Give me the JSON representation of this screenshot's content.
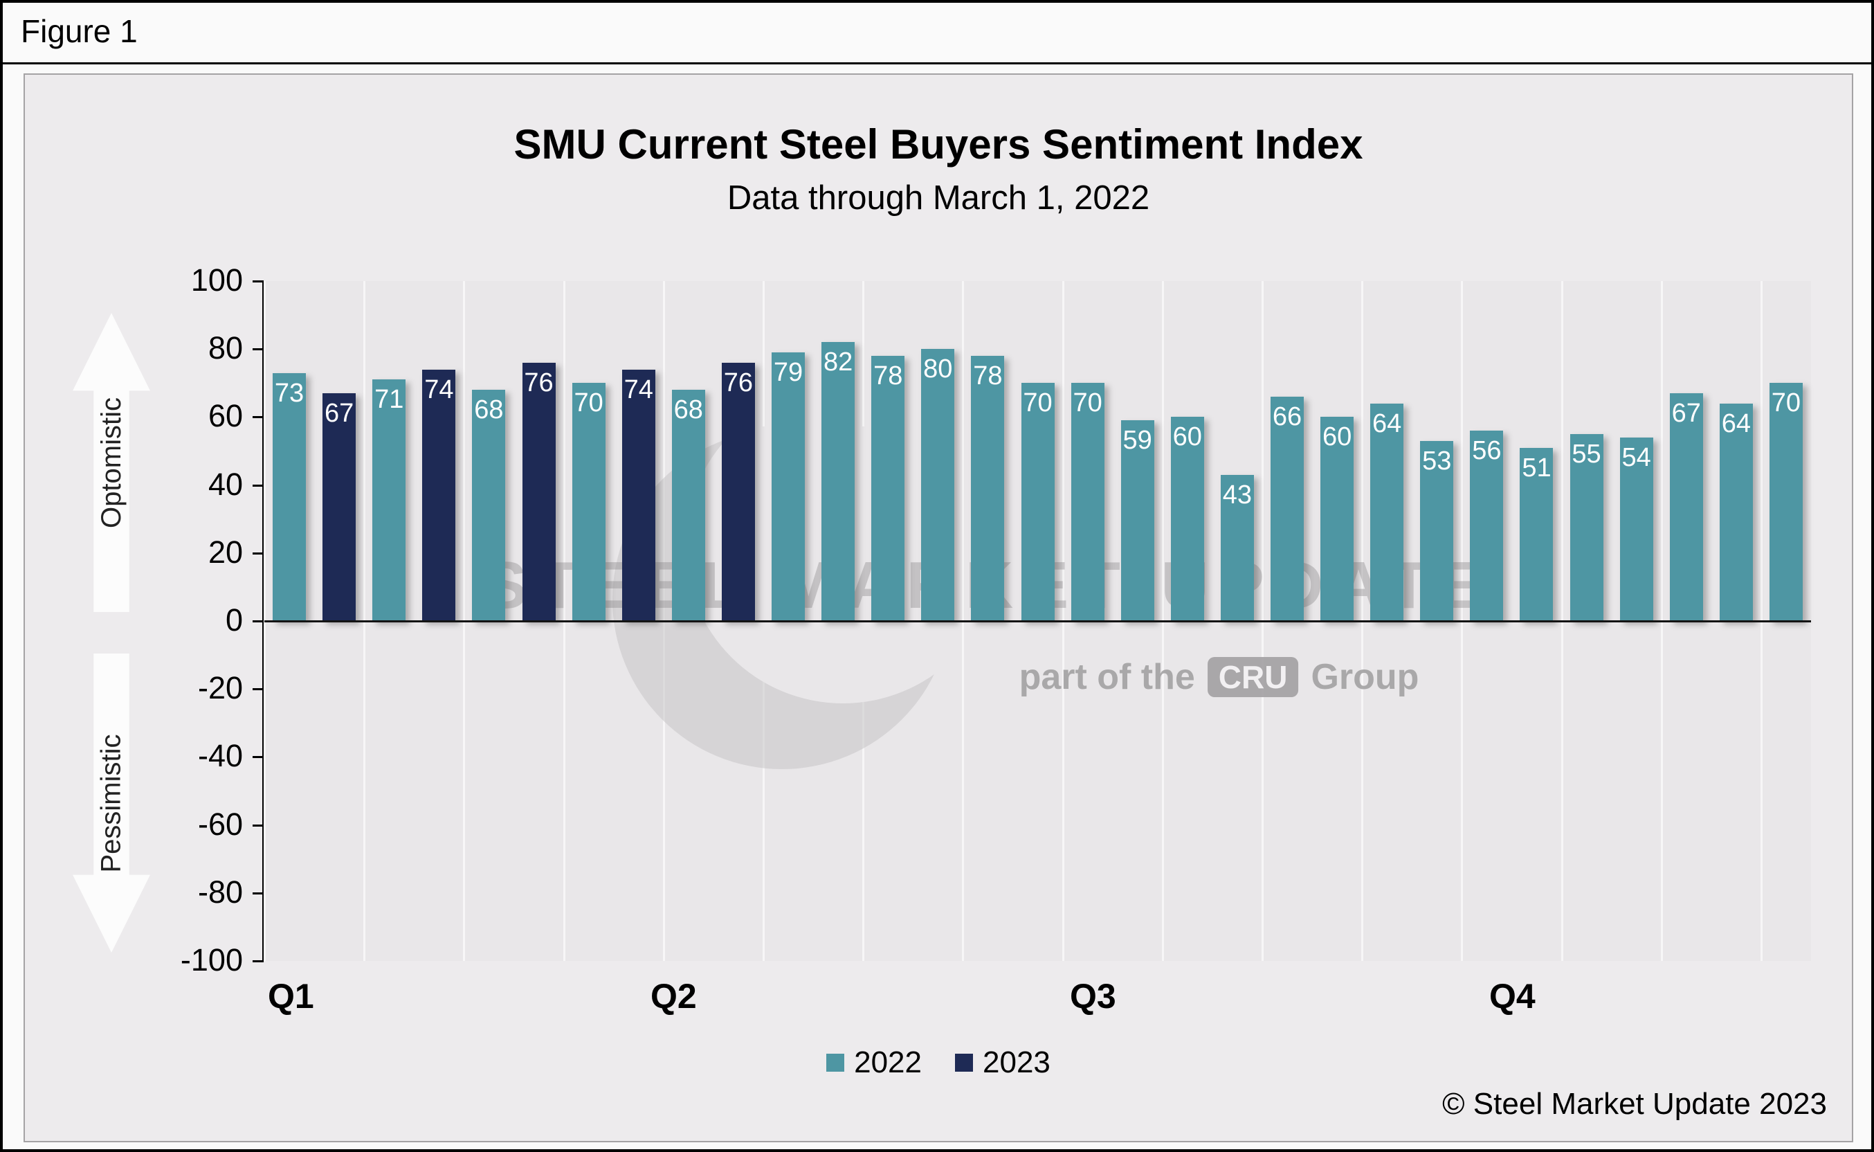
{
  "figure_label": "Figure 1",
  "header": {
    "title": "SMU Current Steel Buyers Sentiment Index",
    "subtitle": "Data through March 1, 2022"
  },
  "axis_annotations": {
    "up": "Optomistic",
    "down": "Pessimistic"
  },
  "watermark": {
    "line1": "STEEL MARKET UPDATE",
    "line2_prefix": "part of the",
    "line2_box": "CRU",
    "line2_suffix": "Group"
  },
  "legend": [
    {
      "label": "2022",
      "color": "#4e96a3"
    },
    {
      "label": "2023",
      "color": "#1e2a55"
    }
  ],
  "copyright": "© Steel Market Update 2023",
  "chart_data": {
    "type": "bar",
    "title": "SMU Current Steel Buyers Sentiment Index",
    "subtitle": "Data through March 1, 2022",
    "ylim": [
      -100,
      100
    ],
    "yticks": [
      100,
      80,
      60,
      40,
      20,
      0,
      -20,
      -40,
      -60,
      -80,
      -100
    ],
    "quarter_labels": [
      "Q1",
      "Q2",
      "Q3",
      "Q4"
    ],
    "series_colors": {
      "2022": "#4e96a3",
      "2023": "#1e2a55"
    },
    "bars": [
      {
        "series": "2023_interleave_note",
        "value": 0
      }
    ],
    "points": [
      {
        "series": "2022",
        "value": 73
      },
      {
        "series": "2023",
        "value": 67
      },
      {
        "series": "2022",
        "value": 71
      },
      {
        "series": "2023",
        "value": 74
      },
      {
        "series": "2022",
        "value": 68
      },
      {
        "series": "2023",
        "value": 76
      },
      {
        "series": "2022",
        "value": 70
      },
      {
        "series": "2023",
        "value": 74
      },
      {
        "series": "2022",
        "value": 68
      },
      {
        "series": "2023",
        "value": 76
      },
      {
        "series": "2022",
        "value": 79
      },
      {
        "series": "2022",
        "value": 82
      },
      {
        "series": "2022",
        "value": 78
      },
      {
        "series": "2022",
        "value": 80
      },
      {
        "series": "2022",
        "value": 78
      },
      {
        "series": "2022",
        "value": 70
      },
      {
        "series": "2022",
        "value": 70
      },
      {
        "series": "2022",
        "value": 59
      },
      {
        "series": "2022",
        "value": 60
      },
      {
        "series": "2022",
        "value": 43
      },
      {
        "series": "2022",
        "value": 66
      },
      {
        "series": "2022",
        "value": 60
      },
      {
        "series": "2022",
        "value": 64
      },
      {
        "series": "2022",
        "value": 53
      },
      {
        "series": "2022",
        "value": 56
      },
      {
        "series": "2022",
        "value": 51
      },
      {
        "series": "2022",
        "value": 55
      },
      {
        "series": "2022",
        "value": 54
      },
      {
        "series": "2022",
        "value": 67
      },
      {
        "series": "2022",
        "value": 64
      },
      {
        "series": "2022",
        "value": 70
      }
    ]
  }
}
